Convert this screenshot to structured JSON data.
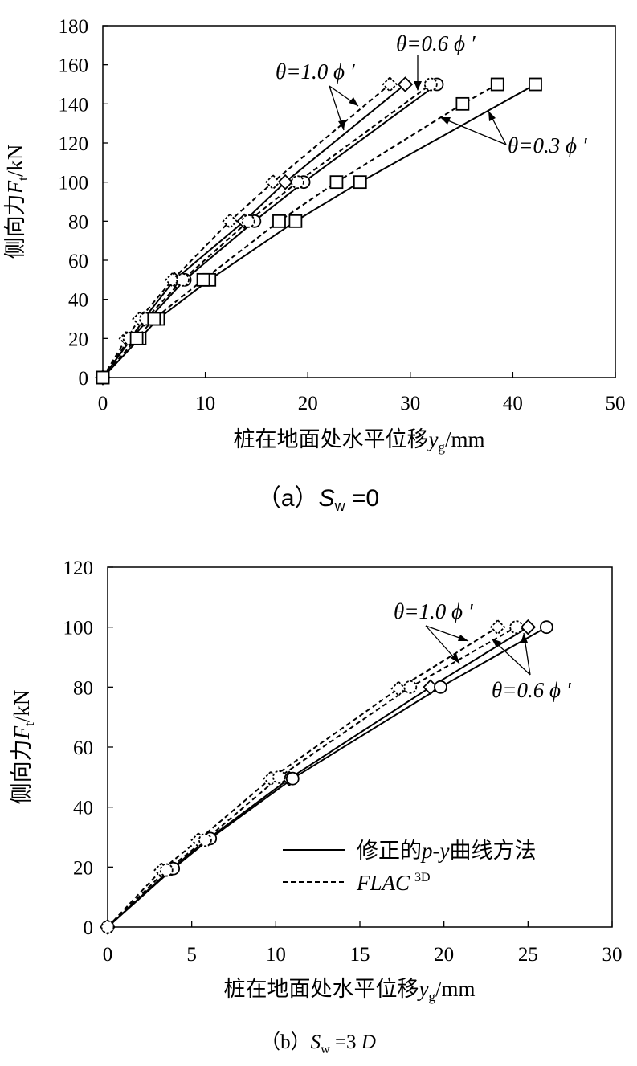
{
  "chart_data": [
    {
      "type": "line",
      "caption": {
        "prefix": "（a）",
        "var": "S",
        "sub": "w",
        "rest": " =0"
      },
      "xlabel": {
        "main": "桩在地面处水平位移",
        "var": "y",
        "sub": "g",
        "unit": "/mm"
      },
      "ylabel": {
        "main": "侧向力",
        "var": "F",
        "sub": "t",
        "unit": "/kN"
      },
      "xlim": [
        0,
        50
      ],
      "ylim": [
        0,
        180
      ],
      "xticks": [
        "0",
        "10",
        "20",
        "30",
        "40",
        "50"
      ],
      "yticks": [
        "0",
        "20",
        "40",
        "60",
        "80",
        "100",
        "120",
        "140",
        "160",
        "180"
      ],
      "grid": false,
      "annotations": [
        {
          "text": "θ=1.0 ϕ ′"
        },
        {
          "text": "θ=0.6 ϕ ′"
        },
        {
          "text": "θ=0.3 ϕ ′"
        }
      ],
      "series": [
        {
          "theta": "1.0",
          "method": "p-y",
          "marker": "diamond",
          "dash": false,
          "x": [
            0,
            2.8,
            4.0,
            7.0,
            13.8,
            17.8,
            29.5
          ],
          "y": [
            0,
            20,
            30,
            50,
            80,
            100,
            150
          ]
        },
        {
          "theta": "1.0",
          "method": "FLAC",
          "marker": "diamond",
          "dash": true,
          "x": [
            0,
            2.3,
            3.6,
            6.8,
            12.4,
            16.6,
            28.0
          ],
          "y": [
            0,
            20,
            30,
            50,
            80,
            100,
            150
          ]
        },
        {
          "theta": "0.6",
          "method": "p-y",
          "marker": "circle",
          "dash": false,
          "x": [
            0,
            2.8,
            4.5,
            8.0,
            14.8,
            19.6,
            32.6
          ],
          "y": [
            0,
            20,
            30,
            50,
            80,
            100,
            150
          ]
        },
        {
          "theta": "0.6",
          "method": "FLAC",
          "marker": "circle",
          "dash": true,
          "x": [
            0,
            2.6,
            4.2,
            7.8,
            14.2,
            19.0,
            32.0
          ],
          "y": [
            0,
            20,
            30,
            50,
            80,
            100,
            150
          ]
        },
        {
          "theta": "0.3",
          "method": "p-y",
          "marker": "square",
          "dash": false,
          "x": [
            0,
            3.6,
            5.4,
            10.4,
            18.8,
            25.1,
            42.2
          ],
          "y": [
            0,
            20,
            30,
            50,
            80,
            100,
            150
          ]
        },
        {
          "theta": "0.3",
          "method": "FLAC",
          "marker": "square",
          "dash": true,
          "x": [
            0,
            3.3,
            5.0,
            9.8,
            17.2,
            22.8,
            35.1,
            38.5
          ],
          "y": [
            0,
            20,
            30,
            50,
            80,
            100,
            140,
            150
          ]
        }
      ]
    },
    {
      "type": "line",
      "caption": {
        "prefix": "（b）",
        "var": "S",
        "sub": "w",
        "rest": " =3 ",
        "rest_var": "D"
      },
      "xlabel": {
        "main": "桩在地面处水平位移",
        "var": "y",
        "sub": "g",
        "unit": "/mm"
      },
      "ylabel": {
        "main": "侧向力",
        "var": "F",
        "sub": "t",
        "unit": "/kN"
      },
      "xlim": [
        0,
        30
      ],
      "ylim": [
        0,
        120
      ],
      "xticks": [
        "0",
        "5",
        "10",
        "15",
        "20",
        "25",
        "30"
      ],
      "yticks": [
        "0",
        "20",
        "40",
        "60",
        "80",
        "100",
        "120"
      ],
      "grid": false,
      "annotations": [
        {
          "text": "θ=1.0 ϕ ′"
        },
        {
          "text": "θ=0.6 ϕ ′"
        }
      ],
      "legend": {
        "position": "bottom-right",
        "solid": {
          "pre": "修正的",
          "italic": "p-y",
          "post": "曲线方法"
        },
        "dashed": {
          "italic": "FLAC",
          "sup": "3D"
        }
      },
      "series": [
        {
          "theta": "1.0",
          "method": "p-y",
          "marker": "diamond",
          "dash": false,
          "x": [
            0,
            3.8,
            6.0,
            10.8,
            19.2,
            25.0
          ],
          "y": [
            0,
            19.5,
            29.5,
            49.5,
            80,
            100
          ]
        },
        {
          "theta": "1.0",
          "method": "FLAC",
          "marker": "diamond",
          "dash": true,
          "x": [
            0,
            3.2,
            5.4,
            9.7,
            17.3,
            23.2
          ],
          "y": [
            0,
            19,
            29,
            49.5,
            79.5,
            100
          ]
        },
        {
          "theta": "0.6",
          "method": "p-y",
          "marker": "circle",
          "dash": false,
          "x": [
            0,
            3.9,
            6.1,
            11.0,
            19.8,
            26.1
          ],
          "y": [
            0,
            19.5,
            29.5,
            49.5,
            80,
            100
          ]
        },
        {
          "theta": "0.6",
          "method": "FLAC",
          "marker": "circle",
          "dash": true,
          "x": [
            0,
            3.5,
            5.8,
            10.2,
            18.0,
            24.3
          ],
          "y": [
            0,
            19,
            29,
            50,
            80,
            100
          ]
        }
      ]
    }
  ]
}
